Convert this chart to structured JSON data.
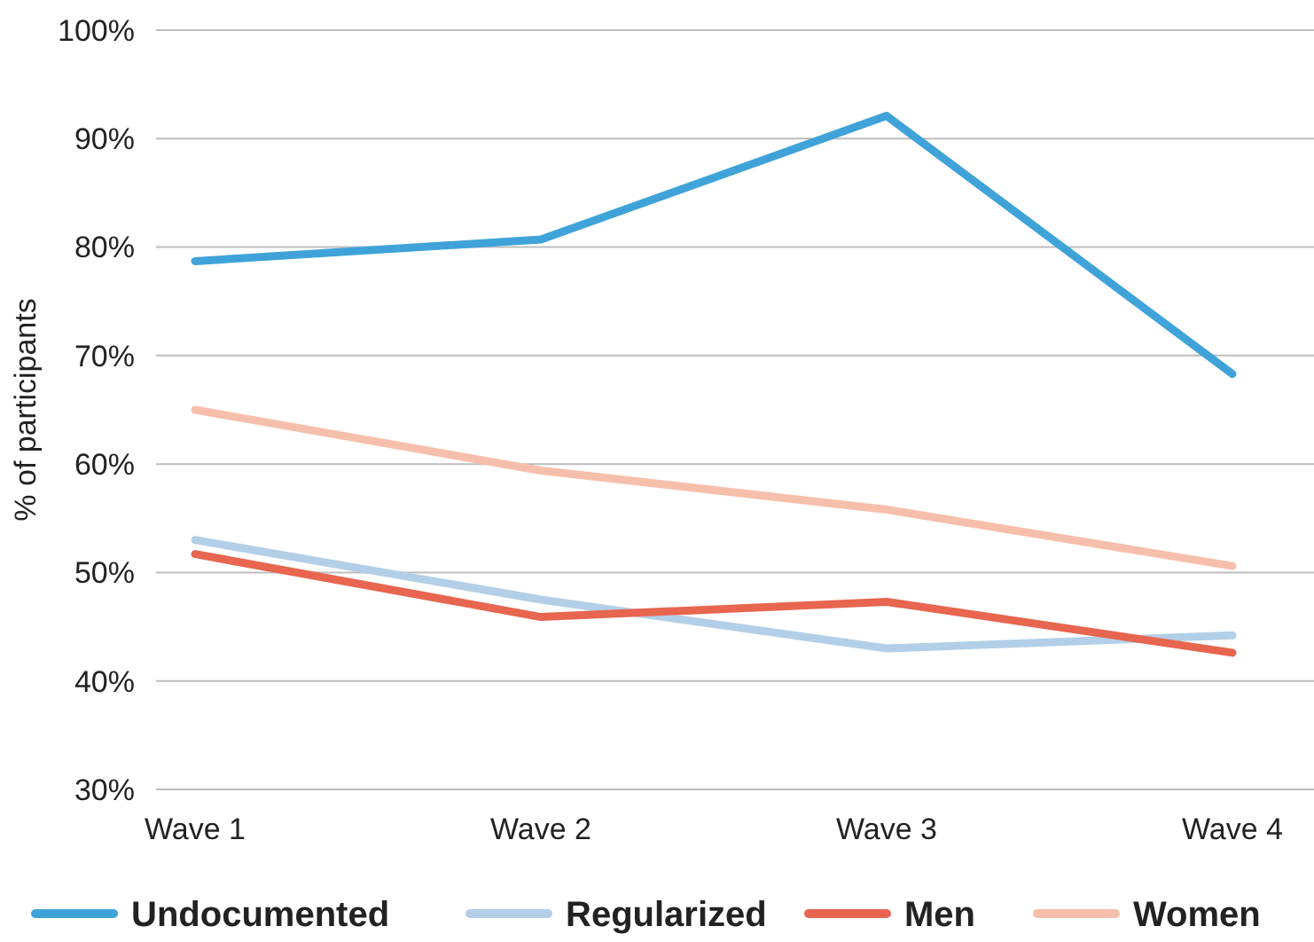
{
  "chart_data": {
    "type": "line",
    "ylabel": "% of participants",
    "categories": [
      "Wave 1",
      "Wave 2",
      "Wave 3",
      "Wave 4"
    ],
    "series": [
      {
        "name": "Undocumented",
        "color": "#3fa3d9",
        "values": [
          78.7,
          80.7,
          92.1,
          68.3
        ]
      },
      {
        "name": "Regularized",
        "color": "#b3cfe8",
        "values": [
          53.0,
          47.5,
          43.0,
          44.2
        ]
      },
      {
        "name": "Men",
        "color": "#e8654f",
        "values": [
          51.7,
          45.9,
          47.3,
          42.6
        ]
      },
      {
        "name": "Women",
        "color": "#f6bfab",
        "values": [
          65.0,
          59.4,
          55.8,
          50.6
        ]
      }
    ],
    "ylim": [
      30,
      100
    ],
    "yticks": [
      {
        "value": 30,
        "label": "30%"
      },
      {
        "value": 40,
        "label": "40%"
      },
      {
        "value": 50,
        "label": "50%"
      },
      {
        "value": 60,
        "label": "60%"
      },
      {
        "value": 70,
        "label": "70%"
      },
      {
        "value": 80,
        "label": "80%"
      },
      {
        "value": 90,
        "label": "90%"
      },
      {
        "value": 100,
        "label": "100%"
      }
    ],
    "grid": "y",
    "legend": "bottom",
    "marker": "none",
    "line_style": "solid"
  }
}
